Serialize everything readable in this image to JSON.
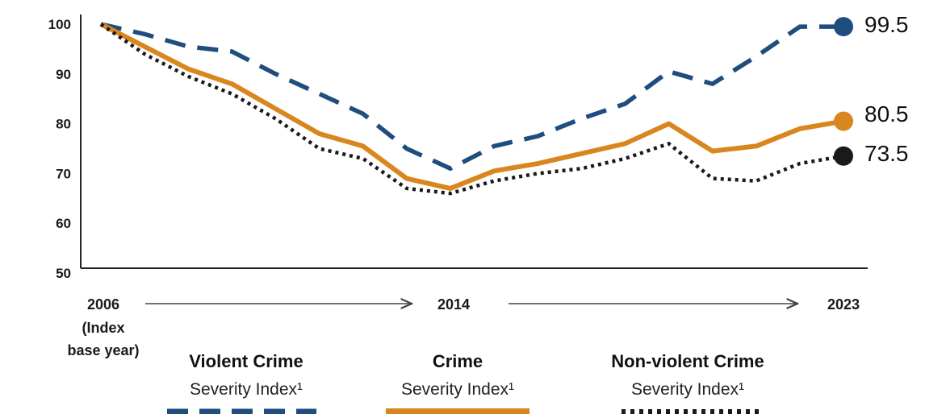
{
  "chart_data": {
    "type": "line",
    "title": "",
    "xlabel": "",
    "ylabel": "",
    "ylim": [
      50,
      100
    ],
    "xlim": [
      2006,
      2023
    ],
    "yticks": [
      100,
      90,
      80,
      70,
      60,
      50
    ],
    "x_labels": {
      "start": "2006",
      "start_note_line1": "(Index",
      "start_note_line2": "base year)",
      "mid": "2014",
      "end": "2023"
    },
    "x": [
      2006,
      2007,
      2008,
      2009,
      2010,
      2011,
      2012,
      2013,
      2014,
      2015,
      2016,
      2017,
      2018,
      2019,
      2020,
      2021,
      2022,
      2023
    ],
    "series": [
      {
        "name": "Violent Crime Severity Index¹",
        "title": "Violent Crime",
        "subtitle": "Severity Index¹",
        "style": "dashed",
        "color": "#1f4e7e",
        "end_label": "99.5",
        "values": [
          100,
          98,
          95.5,
          94.5,
          90,
          86,
          82,
          75,
          71,
          75.5,
          77.5,
          81,
          84,
          90.5,
          88,
          93.5,
          99.5,
          99.5
        ]
      },
      {
        "name": "Crime Severity Index¹",
        "title": "Crime",
        "subtitle": "Severity Index¹",
        "style": "solid",
        "color": "#d9861f",
        "end_label": "80.5",
        "values": [
          100,
          95.5,
          91,
          88,
          83,
          78,
          75.5,
          69,
          67,
          70.5,
          72,
          74,
          76,
          80,
          74.5,
          75.5,
          79,
          80.5
        ]
      },
      {
        "name": "Non-violent Crime Severity Index¹",
        "title": "Non-violent Crime",
        "subtitle": "Severity Index¹",
        "style": "dotted",
        "color": "#1a1a1a",
        "end_label": "73.5",
        "values": [
          100,
          94,
          89.5,
          86,
          81,
          75,
          73,
          67,
          66,
          68.5,
          70,
          71,
          73,
          76,
          69,
          68.5,
          72,
          73.5
        ]
      }
    ],
    "grid": false,
    "legend_position": "bottom"
  }
}
